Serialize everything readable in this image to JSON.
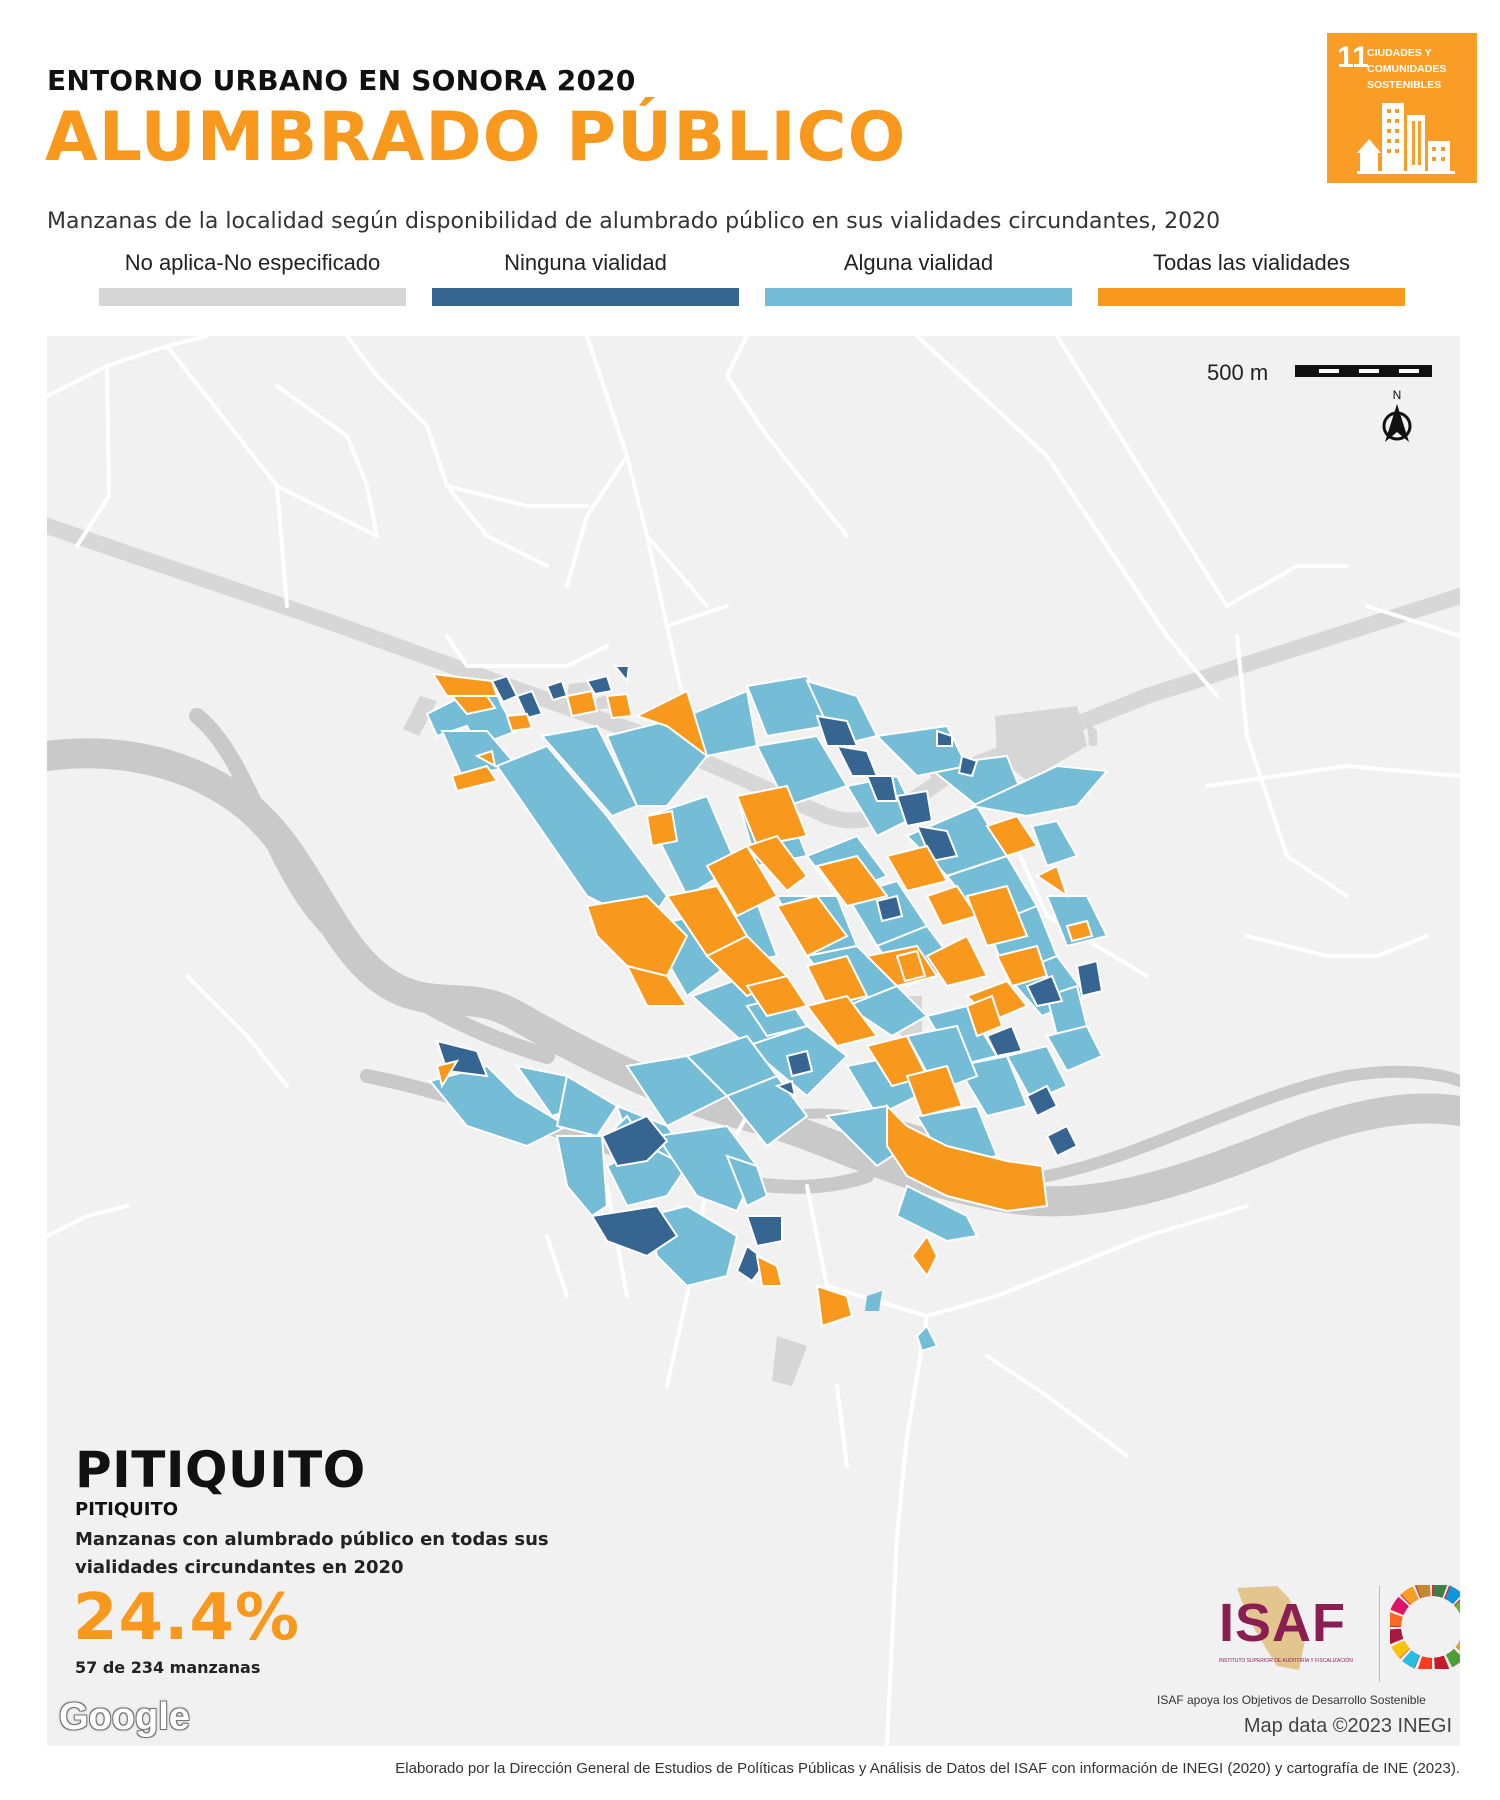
{
  "header": {
    "subtitle": "ENTORNO URBANO EN SONORA 2020",
    "title": "ALUMBRADO PÚBLICO",
    "title_color": "#f8991d"
  },
  "sdg_badge": {
    "number": "11",
    "label": "CIUDADES Y COMUNIDADES SOSTENIBLES",
    "color": "#f99d26",
    "icon": "city-buildings-icon"
  },
  "map_description": "Manzanas de la localidad según disponibilidad de alumbrado público en sus vialidades circundantes, 2020",
  "legend": [
    {
      "label": "No aplica-No especificado",
      "color": "#d6d6d6"
    },
    {
      "label": "Ninguna vialidad",
      "color": "#376592"
    },
    {
      "label": "Alguna vialidad",
      "color": "#75bcd6"
    },
    {
      "label": "Todas las vialidades",
      "color": "#f8991d"
    }
  ],
  "map": {
    "scale_label": "500 m",
    "north_label": "N",
    "attribution": "Map data ©2023 INEGI",
    "provider_logo": "Google",
    "background_color": "#f1f1f1",
    "river_color": "#c9c9c9",
    "road_color": "#ffffff"
  },
  "locality": {
    "name_large": "PITIQUITO",
    "name_small": "PITIQUITO",
    "stat_caption": "Manzanas con alumbrado público en todas sus vialidades circundantes en 2020",
    "percentage": "24.4%",
    "count_text": "57 de 234 manzanas",
    "percentage_color": "#f8991d"
  },
  "branding": {
    "isaf_logo_text": "ISAF",
    "isaf_fine_print": "INSTITUTO SUPERIOR DE AUDITORÍA Y FISCALIZACIÓN",
    "isaf_caption": "ISAF apoya los Objetivos de Desarrollo Sostenible",
    "isaf_color": "#8a1d52"
  },
  "footer": "Elaborado por la Dirección General de Estudios de Políticas Públicas y Análisis de Datos del ISAF con información de INEGI (2020) y cartografía de INE (2023)."
}
